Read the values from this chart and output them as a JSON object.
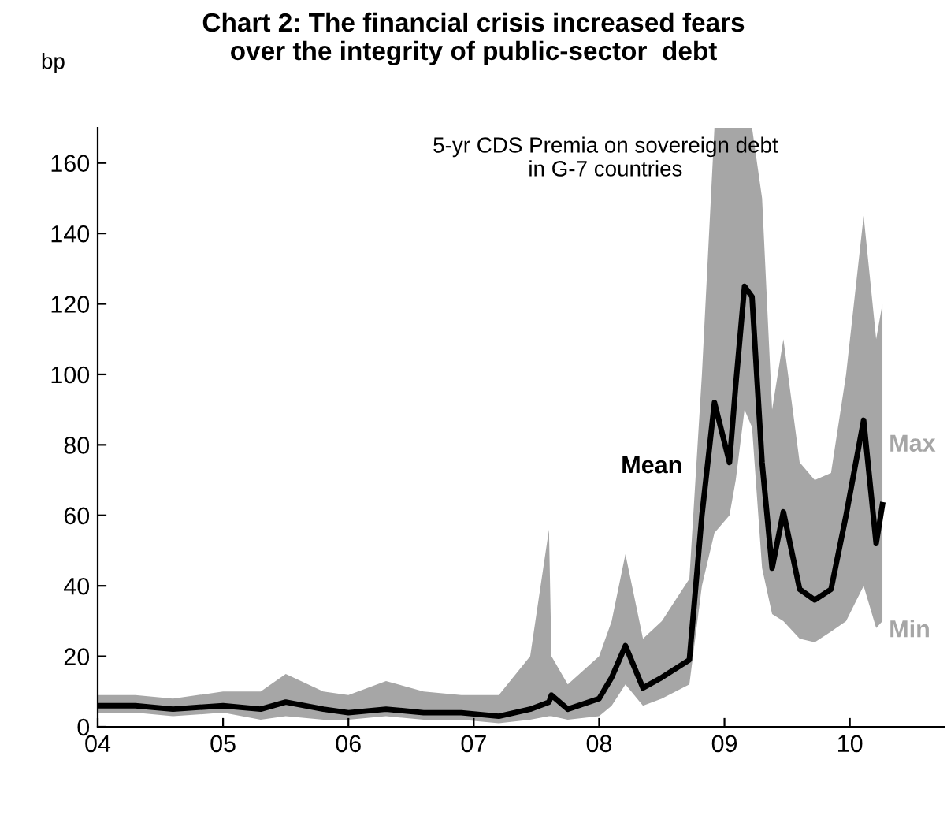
{
  "chart_data": {
    "type": "line",
    "title": "Chart 2: The financial crisis increased fears\nover the integrity of public-sector  debt",
    "ylabel": "bp",
    "annotations": [
      "5-yr CDS Premia on sovereign debt\nin G-7 countries",
      "Max",
      "Min"
    ],
    "x": [
      2004.0,
      2004.3,
      2004.6,
      2005.0,
      2005.3,
      2005.5,
      2005.8,
      2006.0,
      2006.3,
      2006.6,
      2006.9,
      2007.2,
      2007.45,
      2007.6,
      2007.62,
      2007.75,
      2008.0,
      2008.1,
      2008.21,
      2008.35,
      2008.5,
      2008.72,
      2008.82,
      2008.92,
      2009.04,
      2009.09,
      2009.16,
      2009.22,
      2009.3,
      2009.38,
      2009.47,
      2009.6,
      2009.72,
      2009.85,
      2009.97,
      2010.11,
      2010.21,
      2010.26
    ],
    "series": [
      {
        "name": "Mean",
        "color": "#000000",
        "values": [
          6,
          6,
          5,
          6,
          5,
          7,
          5,
          4,
          5,
          4,
          4,
          3,
          5,
          7,
          9,
          5,
          8,
          14,
          23,
          11,
          14,
          19,
          60,
          92,
          75,
          97,
          125,
          122,
          75,
          45,
          61,
          39,
          36,
          39,
          60,
          87,
          52,
          63
        ],
        "lower": [
          4,
          4,
          3,
          4,
          2,
          3,
          2,
          2,
          3,
          2,
          2,
          1,
          2,
          3,
          3,
          2,
          3,
          6,
          12,
          6,
          8,
          12,
          40,
          55,
          60,
          70,
          90,
          85,
          45,
          32,
          30,
          25,
          24,
          27,
          30,
          40,
          28,
          30
        ],
        "upper": [
          9,
          9,
          8,
          10,
          10,
          15,
          10,
          9,
          13,
          10,
          9,
          9,
          20,
          56,
          20,
          12,
          20,
          30,
          49,
          25,
          30,
          42,
          100,
          170,
          170,
          170,
          170,
          170,
          150,
          90,
          110,
          75,
          70,
          72,
          100,
          145,
          110,
          120
        ]
      }
    ],
    "xlim": [
      2004.0,
      2010.75
    ],
    "ylim": [
      0,
      170
    ],
    "xticks": [
      {
        "value": 2004,
        "label": "04"
      },
      {
        "value": 2005,
        "label": "05"
      },
      {
        "value": 2006,
        "label": "06"
      },
      {
        "value": 2007,
        "label": "07"
      },
      {
        "value": 2008,
        "label": "08"
      },
      {
        "value": 2009,
        "label": "09"
      },
      {
        "value": 2010,
        "label": "10"
      }
    ],
    "yticks": [
      0,
      20,
      40,
      60,
      80,
      100,
      120,
      140,
      160
    ],
    "grid": false,
    "legend": false
  }
}
